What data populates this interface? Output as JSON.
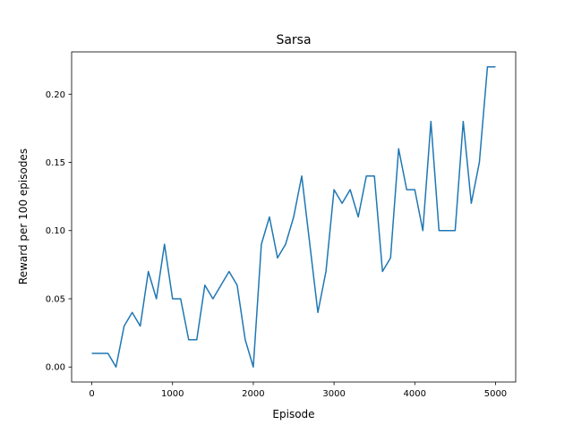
{
  "chart_data": {
    "type": "line",
    "title": "Sarsa",
    "xlabel": "Episode",
    "ylabel": "Reward per 100 episodes",
    "xlim": [
      -250,
      5250
    ],
    "ylim": [
      -0.011,
      0.231
    ],
    "xticks": [
      0,
      1000,
      2000,
      3000,
      4000,
      5000
    ],
    "xtick_labels": [
      "0",
      "1000",
      "2000",
      "3000",
      "4000",
      "5000"
    ],
    "yticks": [
      0.0,
      0.05,
      0.1,
      0.15,
      0.2
    ],
    "ytick_labels": [
      "0.00",
      "0.05",
      "0.10",
      "0.15",
      "0.20"
    ],
    "grid": false,
    "color": "#1f77b4",
    "series": [
      {
        "x": [
          0,
          100,
          200,
          300,
          400,
          500,
          600,
          700,
          800,
          900,
          1000,
          1100,
          1200,
          1300,
          1400,
          1500,
          1600,
          1700,
          1800,
          1900,
          2000,
          2100,
          2200,
          2300,
          2400,
          2500,
          2600,
          2700,
          2800,
          2900,
          3000,
          3100,
          3200,
          3300,
          3400,
          3500,
          3600,
          3700,
          3800,
          3900,
          4000,
          4100,
          4200,
          4300,
          4400,
          4500,
          4600,
          4700,
          4800,
          4900,
          5000
        ],
        "values": [
          0.01,
          0.01,
          0.01,
          0.0,
          0.03,
          0.04,
          0.03,
          0.07,
          0.05,
          0.09,
          0.05,
          0.05,
          0.02,
          0.02,
          0.06,
          0.05,
          0.06,
          0.07,
          0.06,
          0.02,
          0.0,
          0.09,
          0.11,
          0.08,
          0.09,
          0.11,
          0.14,
          0.09,
          0.04,
          0.07,
          0.13,
          0.12,
          0.13,
          0.11,
          0.14,
          0.14,
          0.07,
          0.08,
          0.16,
          0.13,
          0.13,
          0.1,
          0.18,
          0.1,
          0.1,
          0.1,
          0.18,
          0.12,
          0.15,
          0.22,
          0.22
        ]
      }
    ]
  }
}
